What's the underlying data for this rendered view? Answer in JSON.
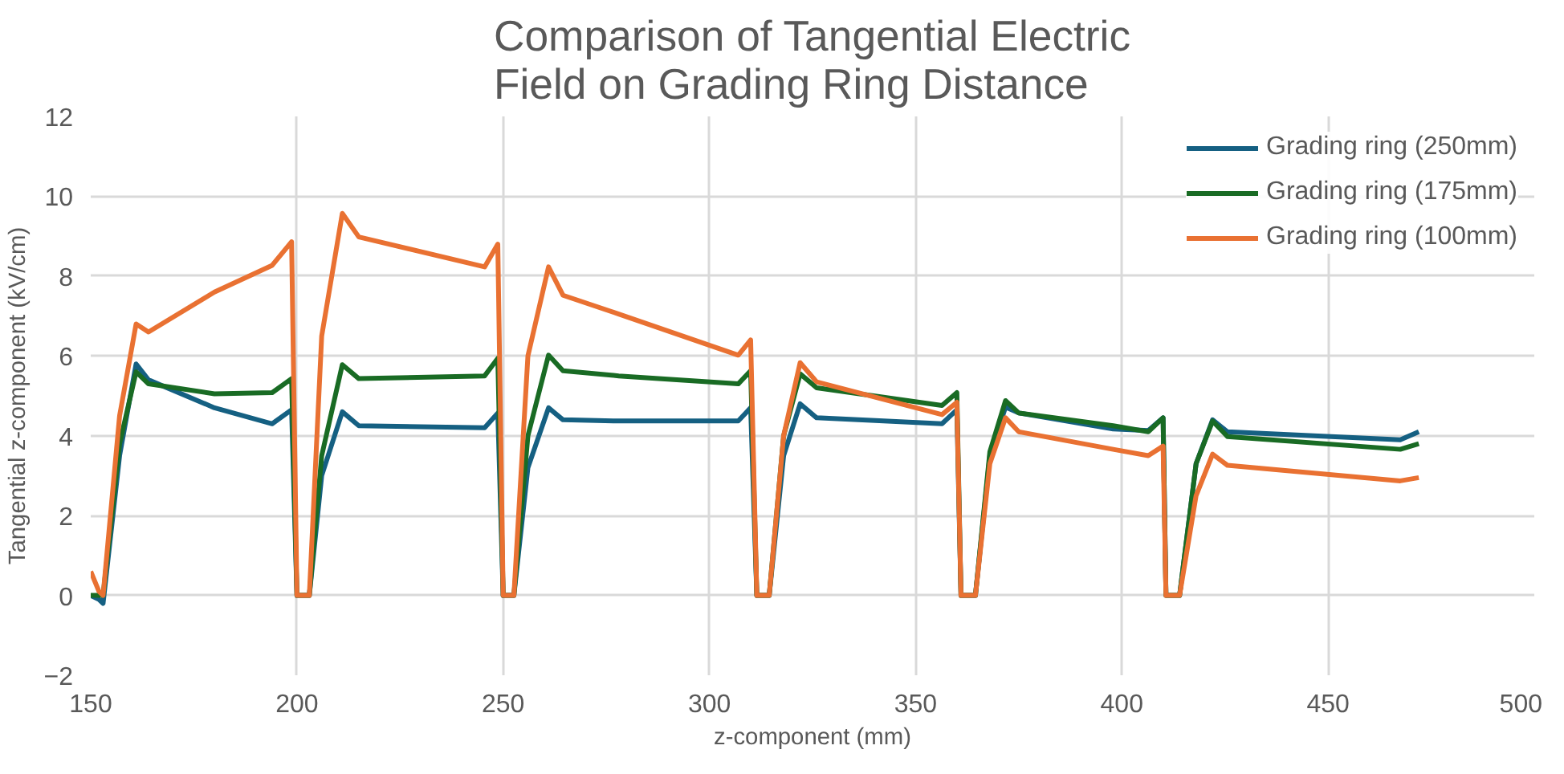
{
  "chart_data": {
    "type": "line",
    "title": "Comparison of Tangential Electric Field on Grading Ring Distance",
    "xlabel": "z-component (mm)",
    "ylabel": "Tangential z-component (kV/cm)",
    "x": [
      150,
      152,
      153,
      157,
      161,
      164,
      180,
      194,
      198.7,
      200,
      203,
      206,
      211,
      215,
      245.5,
      248.7,
      250,
      252.6,
      256,
      261,
      264.5,
      278,
      307,
      310,
      311.5,
      314.5,
      318,
      322,
      326,
      356.4,
      360,
      361,
      364.5,
      368,
      371.8,
      375,
      397.9,
      406.4,
      410,
      410.7,
      414,
      418,
      422,
      425.6,
      467.5,
      472
    ],
    "series": [
      {
        "name": "Grading ring (250mm)",
        "color": "#156082",
        "values": [
          0,
          -0.1,
          -0.2,
          3.5,
          5.8,
          5.4,
          4.7,
          4.3,
          4.65,
          0,
          0,
          3.0,
          4.6,
          4.25,
          4.2,
          4.57,
          0,
          0,
          3.2,
          4.7,
          4.4,
          4.37,
          4.37,
          4.7,
          0,
          0,
          3.5,
          4.8,
          4.45,
          4.3,
          4.65,
          0,
          0,
          3.5,
          4.72,
          4.57,
          4.17,
          4.13,
          4.45,
          0,
          0,
          3.3,
          4.4,
          4.1,
          3.9,
          4.1
        ]
      },
      {
        "name": "Grading ring (175mm)",
        "color": "#196b24",
        "values": [
          0,
          0,
          0,
          3.8,
          5.6,
          5.3,
          5.05,
          5.08,
          5.43,
          0,
          0,
          3.5,
          5.78,
          5.43,
          5.5,
          5.94,
          0,
          0,
          4.0,
          6.02,
          5.63,
          5.5,
          5.3,
          5.63,
          0,
          0,
          4.0,
          5.55,
          5.2,
          4.76,
          5.08,
          0,
          0,
          3.6,
          4.88,
          4.57,
          4.25,
          4.1,
          4.45,
          0,
          0,
          3.3,
          4.37,
          3.98,
          3.66,
          3.8
        ]
      },
      {
        "name": "Grading ring (100mm)",
        "color": "#e97132",
        "values": [
          0.6,
          0.1,
          0,
          4.5,
          6.8,
          6.6,
          7.6,
          8.27,
          8.86,
          0,
          0,
          6.5,
          9.57,
          8.98,
          8.23,
          8.8,
          0,
          0,
          6.0,
          8.23,
          7.52,
          7.05,
          6.02,
          6.4,
          0,
          0,
          4.0,
          5.83,
          5.35,
          4.53,
          4.84,
          0,
          0,
          3.3,
          4.45,
          4.1,
          3.66,
          3.5,
          3.74,
          0,
          0,
          2.5,
          3.54,
          3.26,
          2.87,
          2.95
        ]
      }
    ],
    "xlim": [
      150,
      500
    ],
    "ylim": [
      -2,
      12
    ],
    "xticks": [
      150,
      200,
      250,
      300,
      350,
      400,
      450,
      500
    ],
    "yticks": [
      -2,
      0,
      2,
      4,
      6,
      8,
      10,
      12
    ],
    "grid": true,
    "legend": "top right",
    "marker": "none",
    "line_style": "solid"
  }
}
